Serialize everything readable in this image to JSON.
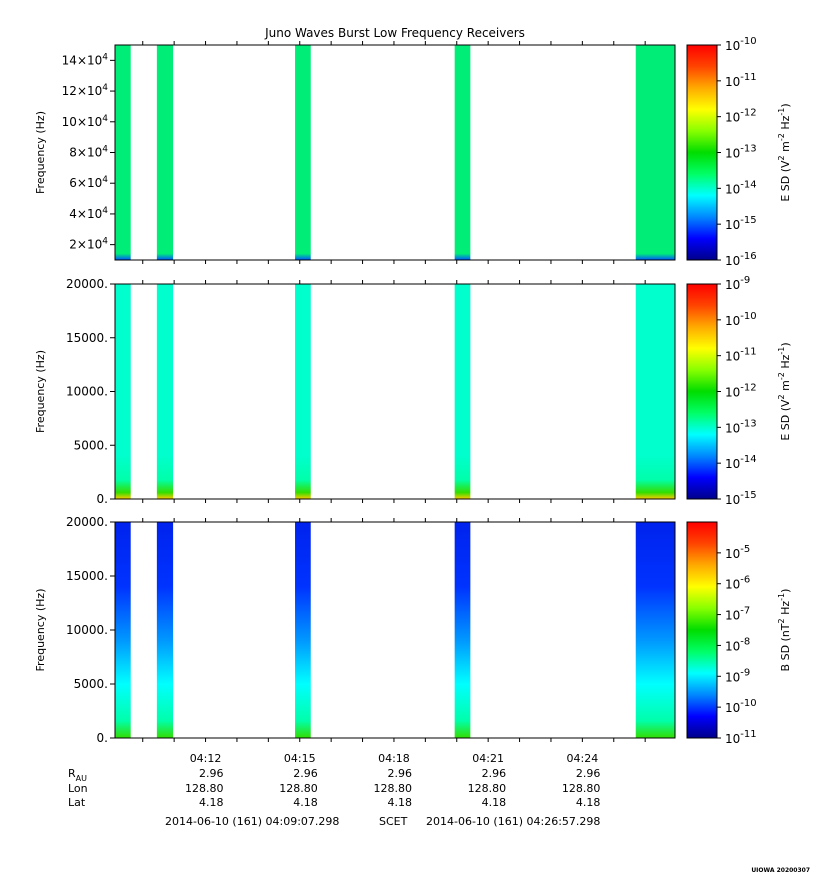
{
  "title": "Juno Waves Burst Low Frequency Receivers",
  "stamp": "UIOWA 20200307",
  "colors": {
    "cmap": [
      "#00008b",
      "#0000ff",
      "#0088ff",
      "#00ffff",
      "#00ff66",
      "#00dd00",
      "#88ff00",
      "#ffff00",
      "#ffaa00",
      "#ff4400",
      "#ff0000"
    ]
  },
  "chart_data": [
    {
      "type": "heatmap",
      "name": "panel-1",
      "ylabel": "Frequency (Hz)",
      "ylim": [
        10000,
        150000
      ],
      "yticks": [
        {
          "value": 20000,
          "mant": "2×10",
          "exp": "4"
        },
        {
          "value": 40000,
          "mant": "4×10",
          "exp": "4"
        },
        {
          "value": 60000,
          "mant": "6×10",
          "exp": "4"
        },
        {
          "value": 80000,
          "mant": "8×10",
          "exp": "4"
        },
        {
          "value": 100000,
          "mant": "10×10",
          "exp": "4"
        },
        {
          "value": 120000,
          "mant": "12×10",
          "exp": "4"
        },
        {
          "value": 140000,
          "mant": "14×10",
          "exp": "4"
        }
      ],
      "colorbar": {
        "label": "E SD (V",
        "label_parts": [
          "E SD (V",
          "2",
          " m",
          "-2",
          " Hz",
          "-1",
          ")"
        ],
        "range_exp": [
          -16,
          -10
        ],
        "ticks": [
          -16,
          -15,
          -14,
          -13,
          -12,
          -11,
          -10
        ]
      },
      "bursts": [
        {
          "start": "04:09:07",
          "end": "04:09:37",
          "level": 0.38
        },
        {
          "start": "04:10:27",
          "end": "04:10:58",
          "level": 0.38
        },
        {
          "start": "04:14:51",
          "end": "04:15:21",
          "level": 0.38
        },
        {
          "start": "04:19:56",
          "end": "04:20:26",
          "level": 0.38
        },
        {
          "start": "04:25:42",
          "end": "04:26:57",
          "level": 0.38
        }
      ]
    },
    {
      "type": "heatmap",
      "name": "panel-2",
      "ylabel": "Frequency (Hz)",
      "ylim": [
        0,
        20000
      ],
      "yticks": [
        {
          "value": 0,
          "text": "0."
        },
        {
          "value": 5000,
          "text": "5000."
        },
        {
          "value": 10000,
          "text": "10000."
        },
        {
          "value": 15000,
          "text": "15000."
        },
        {
          "value": 20000,
          "text": "20000."
        }
      ],
      "colorbar": {
        "label": "E SD (V",
        "label_parts": [
          "E SD (V",
          "2",
          " m",
          "-2",
          " Hz",
          "-1",
          ")"
        ],
        "range_exp": [
          -15,
          -9
        ],
        "ticks": [
          -15,
          -14,
          -13,
          -12,
          -11,
          -10,
          -9
        ]
      },
      "bursts": [
        {
          "start": "04:09:07",
          "end": "04:09:37",
          "level": 0.32
        },
        {
          "start": "04:10:27",
          "end": "04:10:58",
          "level": 0.32
        },
        {
          "start": "04:14:51",
          "end": "04:15:21",
          "level": 0.32
        },
        {
          "start": "04:19:56",
          "end": "04:20:26",
          "level": 0.32
        },
        {
          "start": "04:25:42",
          "end": "04:26:57",
          "level": 0.32
        }
      ]
    },
    {
      "type": "heatmap",
      "name": "panel-3",
      "ylabel": "Frequency (Hz)",
      "ylim": [
        0,
        20000
      ],
      "yticks": [
        {
          "value": 0,
          "text": "0."
        },
        {
          "value": 5000,
          "text": "5000."
        },
        {
          "value": 10000,
          "text": "10000."
        },
        {
          "value": 15000,
          "text": "15000."
        },
        {
          "value": 20000,
          "text": "20000."
        }
      ],
      "colorbar": {
        "label": "B SD (nT",
        "label_parts": [
          "B SD (nT",
          "2",
          " Hz",
          "-1",
          ")"
        ],
        "range_exp": [
          -11,
          -4
        ],
        "ticks": [
          -11,
          -10,
          -9,
          -8,
          -7,
          -6,
          -5
        ]
      },
      "bursts": [
        {
          "start": "04:09:07",
          "end": "04:09:37",
          "level": 0.12
        },
        {
          "start": "04:10:27",
          "end": "04:10:58",
          "level": 0.12
        },
        {
          "start": "04:14:51",
          "end": "04:15:21",
          "level": 0.12
        },
        {
          "start": "04:19:56",
          "end": "04:20:26",
          "level": 0.12
        },
        {
          "start": "04:25:42",
          "end": "04:26:57",
          "level": 0.12
        }
      ]
    }
  ],
  "time_axis": {
    "start": "04:09:07",
    "end": "04:26:57",
    "ticks": [
      "04:12",
      "04:15",
      "04:18",
      "04:21",
      "04:24"
    ]
  },
  "ephemeris": {
    "rows": [
      {
        "label": "R",
        "sub": "AU",
        "values": [
          "2.96",
          "2.96",
          "2.96",
          "2.96",
          "2.96"
        ]
      },
      {
        "label": "Lon",
        "values": [
          "128.80",
          "128.80",
          "128.80",
          "128.80",
          "128.80"
        ]
      },
      {
        "label": "Lat",
        "values": [
          "4.18",
          "4.18",
          "4.18",
          "4.18",
          "4.18"
        ]
      }
    ]
  },
  "footer": {
    "start_time": "2014-06-10 (161) 04:09:07.298",
    "scet": "SCET",
    "end_time": "2014-06-10 (161) 04:26:57.298"
  }
}
